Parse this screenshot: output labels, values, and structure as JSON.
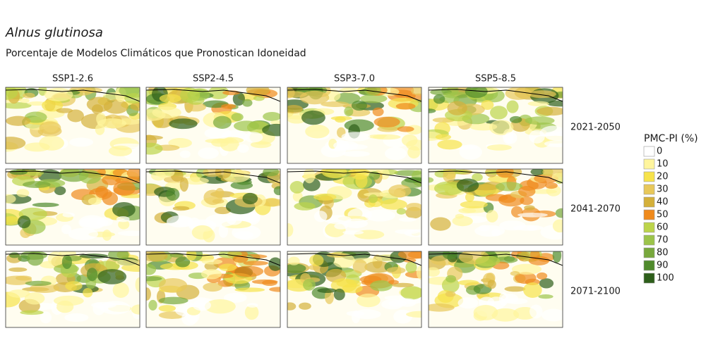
{
  "title": "Alnus glutinosa",
  "subtitle": "Porcentaje de Modelos Climáticos que Pronostican Idoneidad",
  "columns": [
    "SSP1-2.6",
    "SSP2-4.5",
    "SSP3-7.0",
    "SSP5-8.5"
  ],
  "rows": [
    "2021-2050",
    "2041-2070",
    "2071-2100"
  ],
  "legend": {
    "title": "PMC-PI (%)",
    "items": [
      {
        "label": "0",
        "color": "#ffffff"
      },
      {
        "label": "10",
        "color": "#fff59d"
      },
      {
        "label": "20",
        "color": "#f7e34a"
      },
      {
        "label": "30",
        "color": "#e8c85a"
      },
      {
        "label": "40",
        "color": "#d4b03a"
      },
      {
        "label": "50",
        "color": "#f08a1c"
      },
      {
        "label": "60",
        "color": "#bcd44a"
      },
      {
        "label": "70",
        "color": "#9cc44a"
      },
      {
        "label": "80",
        "color": "#78a83c"
      },
      {
        "label": "90",
        "color": "#4f8a2c"
      },
      {
        "label": "100",
        "color": "#2d5e1a"
      }
    ]
  }
}
